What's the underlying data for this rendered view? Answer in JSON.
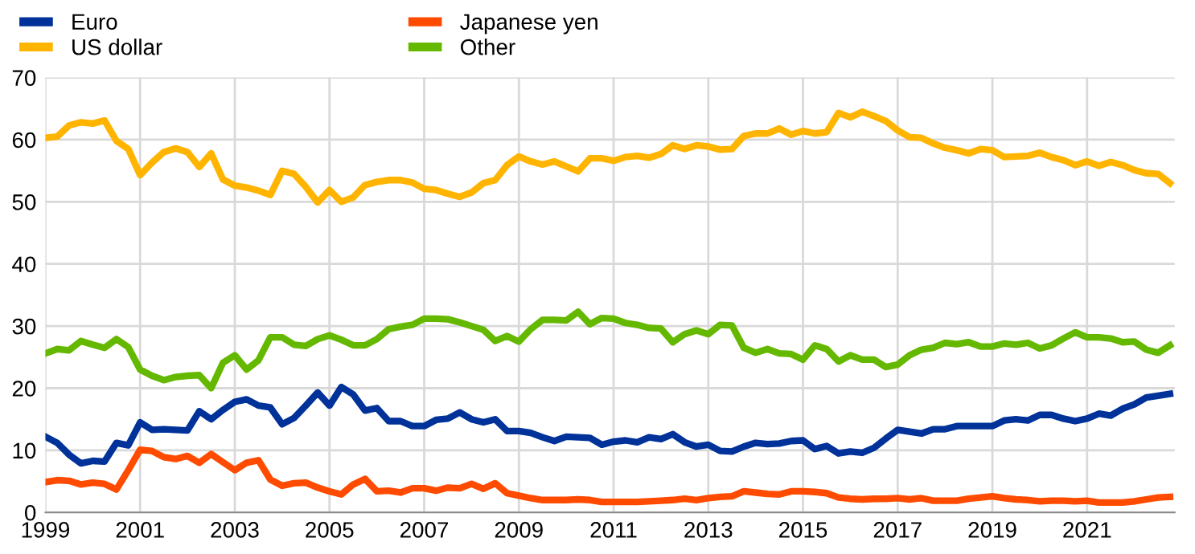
{
  "chart_data": {
    "type": "line",
    "x": [
      1999.0,
      1999.25,
      1999.5,
      1999.75,
      2000.0,
      2000.25,
      2000.5,
      2000.75,
      2001.0,
      2001.25,
      2001.5,
      2001.75,
      2002.0,
      2002.25,
      2002.5,
      2002.75,
      2003.0,
      2003.25,
      2003.5,
      2003.75,
      2004.0,
      2004.25,
      2004.5,
      2004.75,
      2005.0,
      2005.25,
      2005.5,
      2005.75,
      2006.0,
      2006.25,
      2006.5,
      2006.75,
      2007.0,
      2007.25,
      2007.5,
      2007.75,
      2008.0,
      2008.25,
      2008.5,
      2008.75,
      2009.0,
      2009.25,
      2009.5,
      2009.75,
      2010.0,
      2010.25,
      2010.5,
      2010.75,
      2011.0,
      2011.25,
      2011.5,
      2011.75,
      2012.0,
      2012.25,
      2012.5,
      2012.75,
      2013.0,
      2013.25,
      2013.5,
      2013.75,
      2014.0,
      2014.25,
      2014.5,
      2014.75,
      2015.0,
      2015.25,
      2015.5,
      2015.75,
      2016.0,
      2016.25,
      2016.5,
      2016.75,
      2017.0,
      2017.25,
      2017.5,
      2017.75,
      2018.0,
      2018.25,
      2018.5,
      2018.75,
      2019.0,
      2019.25,
      2019.5,
      2019.75,
      2020.0,
      2020.25,
      2020.5,
      2020.75,
      2021.0,
      2021.25,
      2021.5,
      2021.75,
      2022.0,
      2022.25,
      2022.5,
      2022.75
    ],
    "series": [
      {
        "name": "Euro",
        "color": "#003299",
        "values": [
          12.2,
          11.2,
          9.3,
          7.9,
          8.3,
          8.2,
          11.2,
          10.8,
          14.5,
          13.3,
          13.4,
          13.3,
          13.2,
          16.3,
          15.0,
          16.5,
          17.8,
          18.2,
          17.2,
          16.9,
          14.2,
          15.2,
          17.2,
          19.3,
          17.2,
          20.2,
          19.0,
          16.4,
          16.8,
          14.7,
          14.7,
          13.9,
          13.9,
          14.9,
          15.1,
          16.1,
          15.0,
          14.5,
          15.0,
          13.1,
          13.1,
          12.8,
          12.1,
          11.5,
          12.2,
          12.1,
          12.0,
          10.9,
          11.4,
          11.6,
          11.3,
          12.1,
          11.8,
          12.6,
          11.3,
          10.6,
          10.9,
          9.9,
          9.8,
          10.6,
          11.2,
          11.0,
          11.1,
          11.5,
          11.6,
          10.2,
          10.7,
          9.5,
          9.8,
          9.6,
          10.4,
          11.9,
          13.3,
          13.0,
          12.7,
          13.4,
          13.4,
          13.9,
          13.9,
          13.9,
          13.9,
          14.8,
          15.0,
          14.8,
          15.7,
          15.7,
          15.1,
          14.7,
          15.1,
          15.9,
          15.6,
          16.7,
          17.4,
          18.5,
          18.8,
          19.1
        ]
      },
      {
        "name": "US dollar",
        "color": "#ffb400",
        "values": [
          60.3,
          60.5,
          62.3,
          62.8,
          62.6,
          63.1,
          59.8,
          58.5,
          54.3,
          56.3,
          58.0,
          58.6,
          58.0,
          55.6,
          57.8,
          53.6,
          52.6,
          52.3,
          51.8,
          51.1,
          55.0,
          54.5,
          52.4,
          49.9,
          51.9,
          50.0,
          50.7,
          52.7,
          53.2,
          53.5,
          53.5,
          53.1,
          52.1,
          51.9,
          51.3,
          50.8,
          51.5,
          53.0,
          53.5,
          55.9,
          57.3,
          56.5,
          56.0,
          56.5,
          55.7,
          54.9,
          57.0,
          57.0,
          56.6,
          57.2,
          57.4,
          57.1,
          57.7,
          59.1,
          58.5,
          59.1,
          58.9,
          58.4,
          58.5,
          60.6,
          61.0,
          61.0,
          61.8,
          60.8,
          61.4,
          61.0,
          61.2,
          64.3,
          63.6,
          64.5,
          63.8,
          63.0,
          61.5,
          60.4,
          60.3,
          59.4,
          58.7,
          58.3,
          57.8,
          58.5,
          58.3,
          57.2,
          57.3,
          57.4,
          57.9,
          57.2,
          56.7,
          55.9,
          56.5,
          55.8,
          56.4,
          55.9,
          55.1,
          54.6,
          54.5,
          53.0
        ]
      },
      {
        "name": "Japanese yen",
        "color": "#ff4b00",
        "values": [
          4.9,
          5.2,
          5.1,
          4.5,
          4.8,
          4.6,
          3.7,
          6.8,
          10.1,
          9.9,
          8.9,
          8.6,
          9.1,
          8.0,
          9.4,
          8.1,
          6.8,
          8.0,
          8.4,
          5.3,
          4.3,
          4.7,
          4.8,
          4.0,
          3.4,
          2.9,
          4.5,
          5.4,
          3.4,
          3.5,
          3.2,
          3.9,
          3.9,
          3.5,
          4.0,
          3.9,
          4.6,
          3.8,
          4.7,
          3.1,
          2.7,
          2.3,
          2.0,
          2.0,
          2.0,
          2.1,
          2.0,
          1.7,
          1.7,
          1.7,
          1.7,
          1.8,
          1.9,
          2.0,
          2.2,
          2.0,
          2.3,
          2.5,
          2.6,
          3.4,
          3.2,
          3.0,
          2.9,
          3.4,
          3.4,
          3.3,
          3.1,
          2.4,
          2.2,
          2.1,
          2.2,
          2.2,
          2.3,
          2.1,
          2.3,
          1.9,
          1.9,
          1.9,
          2.2,
          2.4,
          2.6,
          2.3,
          2.1,
          2.0,
          1.8,
          1.9,
          1.9,
          1.8,
          1.9,
          1.6,
          1.6,
          1.6,
          1.8,
          2.1,
          2.4,
          2.5
        ]
      },
      {
        "name": "Other",
        "color": "#65b800",
        "values": [
          25.6,
          26.3,
          26.1,
          27.6,
          27.0,
          26.5,
          27.9,
          26.6,
          23.0,
          22.0,
          21.3,
          21.8,
          22.0,
          22.1,
          20.0,
          24.1,
          25.3,
          23.0,
          24.5,
          28.2,
          28.2,
          27.0,
          26.8,
          27.9,
          28.5,
          27.8,
          26.9,
          26.9,
          27.9,
          29.5,
          29.9,
          30.2,
          31.2,
          31.2,
          31.1,
          30.6,
          30.0,
          29.4,
          27.6,
          28.4,
          27.5,
          29.5,
          31.0,
          31.0,
          30.9,
          32.3,
          30.3,
          31.3,
          31.2,
          30.5,
          30.2,
          29.7,
          29.6,
          27.4,
          28.7,
          29.3,
          28.7,
          30.2,
          30.1,
          26.5,
          25.7,
          26.3,
          25.6,
          25.5,
          24.6,
          26.9,
          26.3,
          24.3,
          25.3,
          24.6,
          24.6,
          23.4,
          23.8,
          25.3,
          26.2,
          26.5,
          27.3,
          27.1,
          27.4,
          26.7,
          26.7,
          27.2,
          27.0,
          27.3,
          26.4,
          26.9,
          28.0,
          29.0,
          28.2,
          28.2,
          28.0,
          27.4,
          27.5,
          26.2,
          25.7,
          26.9
        ]
      }
    ],
    "xlim": [
      1999,
      2022.85
    ],
    "xticks": [
      1999,
      2001,
      2003,
      2005,
      2007,
      2009,
      2011,
      2013,
      2015,
      2017,
      2019,
      2021
    ],
    "ylim": [
      0,
      70
    ],
    "yticks": [
      0,
      10,
      20,
      30,
      40,
      50,
      60,
      70
    ],
    "grid": true,
    "legend": "top left",
    "marker": "none",
    "line_style": "solid"
  }
}
